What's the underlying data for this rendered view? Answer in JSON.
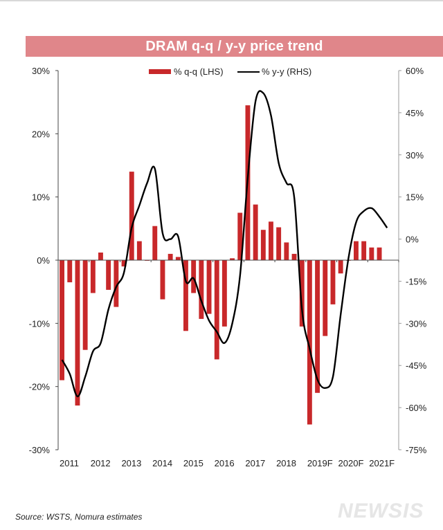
{
  "chart_data": {
    "type": "bar",
    "title": "DRAM q-q / y-y price trend",
    "xlabel": "",
    "ylabel": "",
    "categories": [
      "2011",
      "2012",
      "2013",
      "2014",
      "2015",
      "2016",
      "2017",
      "2018",
      "2019F",
      "2020F",
      "2021F"
    ],
    "quarters_per_category": 4,
    "left_axis": {
      "ylim": [
        -30,
        30
      ],
      "ticks": [
        30,
        20,
        10,
        0,
        -10,
        -20,
        -30
      ],
      "tick_labels": [
        "30%",
        "20%",
        "10%",
        "0%",
        "-10%",
        "-20%",
        "-30%"
      ]
    },
    "right_axis": {
      "ylim": [
        -75,
        60
      ],
      "ticks": [
        60,
        45,
        30,
        15,
        0,
        -15,
        -30,
        -45,
        -60,
        -75
      ],
      "tick_labels": [
        "60%",
        "45%",
        "30%",
        "15%",
        "0%",
        "-15%",
        "-30%",
        "-45%",
        "-60%",
        "-75%"
      ]
    },
    "grid": false,
    "legend_position": "top-center",
    "series": [
      {
        "name": "% q-q (LHS)",
        "type": "bar",
        "axis": "left",
        "color": "#c8282a",
        "values": [
          -19.0,
          -3.5,
          -23.0,
          -14.2,
          -5.2,
          1.2,
          -4.7,
          -7.4,
          -1.0,
          14.0,
          3.0,
          -0.1,
          5.4,
          -6.2,
          1.0,
          0.5,
          -11.2,
          -5.2,
          -9.3,
          -8.5,
          -15.7,
          -10.5,
          0.3,
          7.5,
          24.5,
          8.8,
          4.8,
          6.1,
          5.2,
          2.8,
          1.0,
          -10.5,
          -26.0,
          -21.0,
          -12.0,
          -7.0,
          -2.1,
          0,
          3.0,
          3.0,
          2.0,
          2.0,
          null,
          null
        ]
      },
      {
        "name": "% y-y (RHS)",
        "type": "line",
        "axis": "right",
        "color": "#000000",
        "values": [
          -43,
          -48,
          -56,
          -49,
          -40,
          -37,
          -25,
          -17,
          -12,
          4,
          12,
          20,
          25,
          2,
          0,
          1,
          -15,
          -14,
          -22,
          -29,
          -33,
          -37,
          -30,
          -13,
          22,
          49,
          52,
          44,
          27,
          20,
          15,
          -25,
          -39,
          -50,
          -53,
          -49,
          -27,
          -7,
          6,
          10,
          11,
          8,
          4,
          null
        ]
      }
    ]
  },
  "source": "Source: WSTS, Nomura estimates",
  "watermark": "NEWSIS"
}
